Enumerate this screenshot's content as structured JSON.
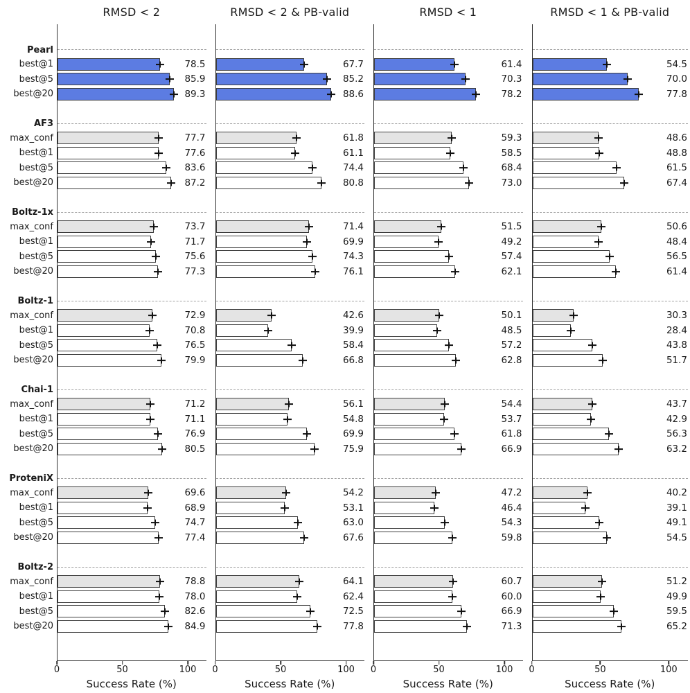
{
  "chart_data": {
    "type": "bar",
    "orientation": "horizontal",
    "xlabel": "Success Rate (%)",
    "xticks": [
      0,
      50,
      100
    ],
    "xlim": [
      0,
      114
    ],
    "grid": false,
    "panels": [
      "RMSD < 2",
      "RMSD < 2 & PB-valid",
      "RMSD < 1",
      "RMSD < 1 & PB-valid"
    ],
    "colors": {
      "highlight_fill": "#5c7ce2",
      "max_conf_fill": "#e4e4e4",
      "best_fill": "#ffffff",
      "bar_border": "#3d3d3d",
      "separator": "#a0a0a0",
      "error_bar": "#101010"
    },
    "groups": [
      {
        "name": "Pearl",
        "highlight": true,
        "rows": [
          {
            "label": "best@1",
            "values": [
              78.5,
              67.7,
              61.4,
              54.5
            ]
          },
          {
            "label": "best@5",
            "values": [
              85.9,
              85.2,
              70.3,
              70.0
            ]
          },
          {
            "label": "best@20",
            "values": [
              89.3,
              88.6,
              78.2,
              77.8
            ]
          }
        ]
      },
      {
        "name": "AF3",
        "highlight": false,
        "rows": [
          {
            "label": "max_conf",
            "values": [
              77.7,
              61.8,
              59.3,
              48.6
            ]
          },
          {
            "label": "best@1",
            "values": [
              77.6,
              61.1,
              58.5,
              48.8
            ]
          },
          {
            "label": "best@5",
            "values": [
              83.6,
              74.4,
              68.4,
              61.5
            ]
          },
          {
            "label": "best@20",
            "values": [
              87.2,
              80.8,
              73.0,
              67.4
            ]
          }
        ]
      },
      {
        "name": "Boltz-1x",
        "highlight": false,
        "rows": [
          {
            "label": "max_conf",
            "values": [
              73.7,
              71.4,
              51.5,
              50.6
            ]
          },
          {
            "label": "best@1",
            "values": [
              71.7,
              69.9,
              49.2,
              48.4
            ]
          },
          {
            "label": "best@5",
            "values": [
              75.6,
              74.3,
              57.4,
              56.5
            ]
          },
          {
            "label": "best@20",
            "values": [
              77.3,
              76.1,
              62.1,
              61.4
            ]
          }
        ]
      },
      {
        "name": "Boltz-1",
        "highlight": false,
        "rows": [
          {
            "label": "max_conf",
            "values": [
              72.9,
              42.6,
              50.1,
              30.3
            ]
          },
          {
            "label": "best@1",
            "values": [
              70.8,
              39.9,
              48.5,
              28.4
            ]
          },
          {
            "label": "best@5",
            "values": [
              76.5,
              58.4,
              57.2,
              43.8
            ]
          },
          {
            "label": "best@20",
            "values": [
              79.9,
              66.8,
              62.8,
              51.7
            ]
          }
        ]
      },
      {
        "name": "Chai-1",
        "highlight": false,
        "rows": [
          {
            "label": "max_conf",
            "values": [
              71.2,
              56.1,
              54.4,
              43.7
            ]
          },
          {
            "label": "best@1",
            "values": [
              71.1,
              54.8,
              53.7,
              42.9
            ]
          },
          {
            "label": "best@5",
            "values": [
              76.9,
              69.9,
              61.8,
              56.3
            ]
          },
          {
            "label": "best@20",
            "values": [
              80.5,
              75.9,
              66.9,
              63.2
            ]
          }
        ]
      },
      {
        "name": "ProteniX",
        "highlight": false,
        "rows": [
          {
            "label": "max_conf",
            "values": [
              69.6,
              54.2,
              47.2,
              40.2
            ]
          },
          {
            "label": "best@1",
            "values": [
              68.9,
              53.1,
              46.4,
              39.1
            ]
          },
          {
            "label": "best@5",
            "values": [
              74.7,
              63.0,
              54.3,
              49.1
            ]
          },
          {
            "label": "best@20",
            "values": [
              77.4,
              67.6,
              59.8,
              54.5
            ]
          }
        ]
      },
      {
        "name": "Boltz-2",
        "highlight": false,
        "rows": [
          {
            "label": "max_conf",
            "values": [
              78.8,
              64.1,
              60.7,
              51.2
            ]
          },
          {
            "label": "best@1",
            "values": [
              78.0,
              62.4,
              60.0,
              49.9
            ]
          },
          {
            "label": "best@5",
            "values": [
              82.6,
              72.5,
              66.9,
              59.5
            ]
          },
          {
            "label": "best@20",
            "values": [
              84.9,
              77.8,
              71.3,
              65.2
            ]
          }
        ]
      }
    ]
  }
}
